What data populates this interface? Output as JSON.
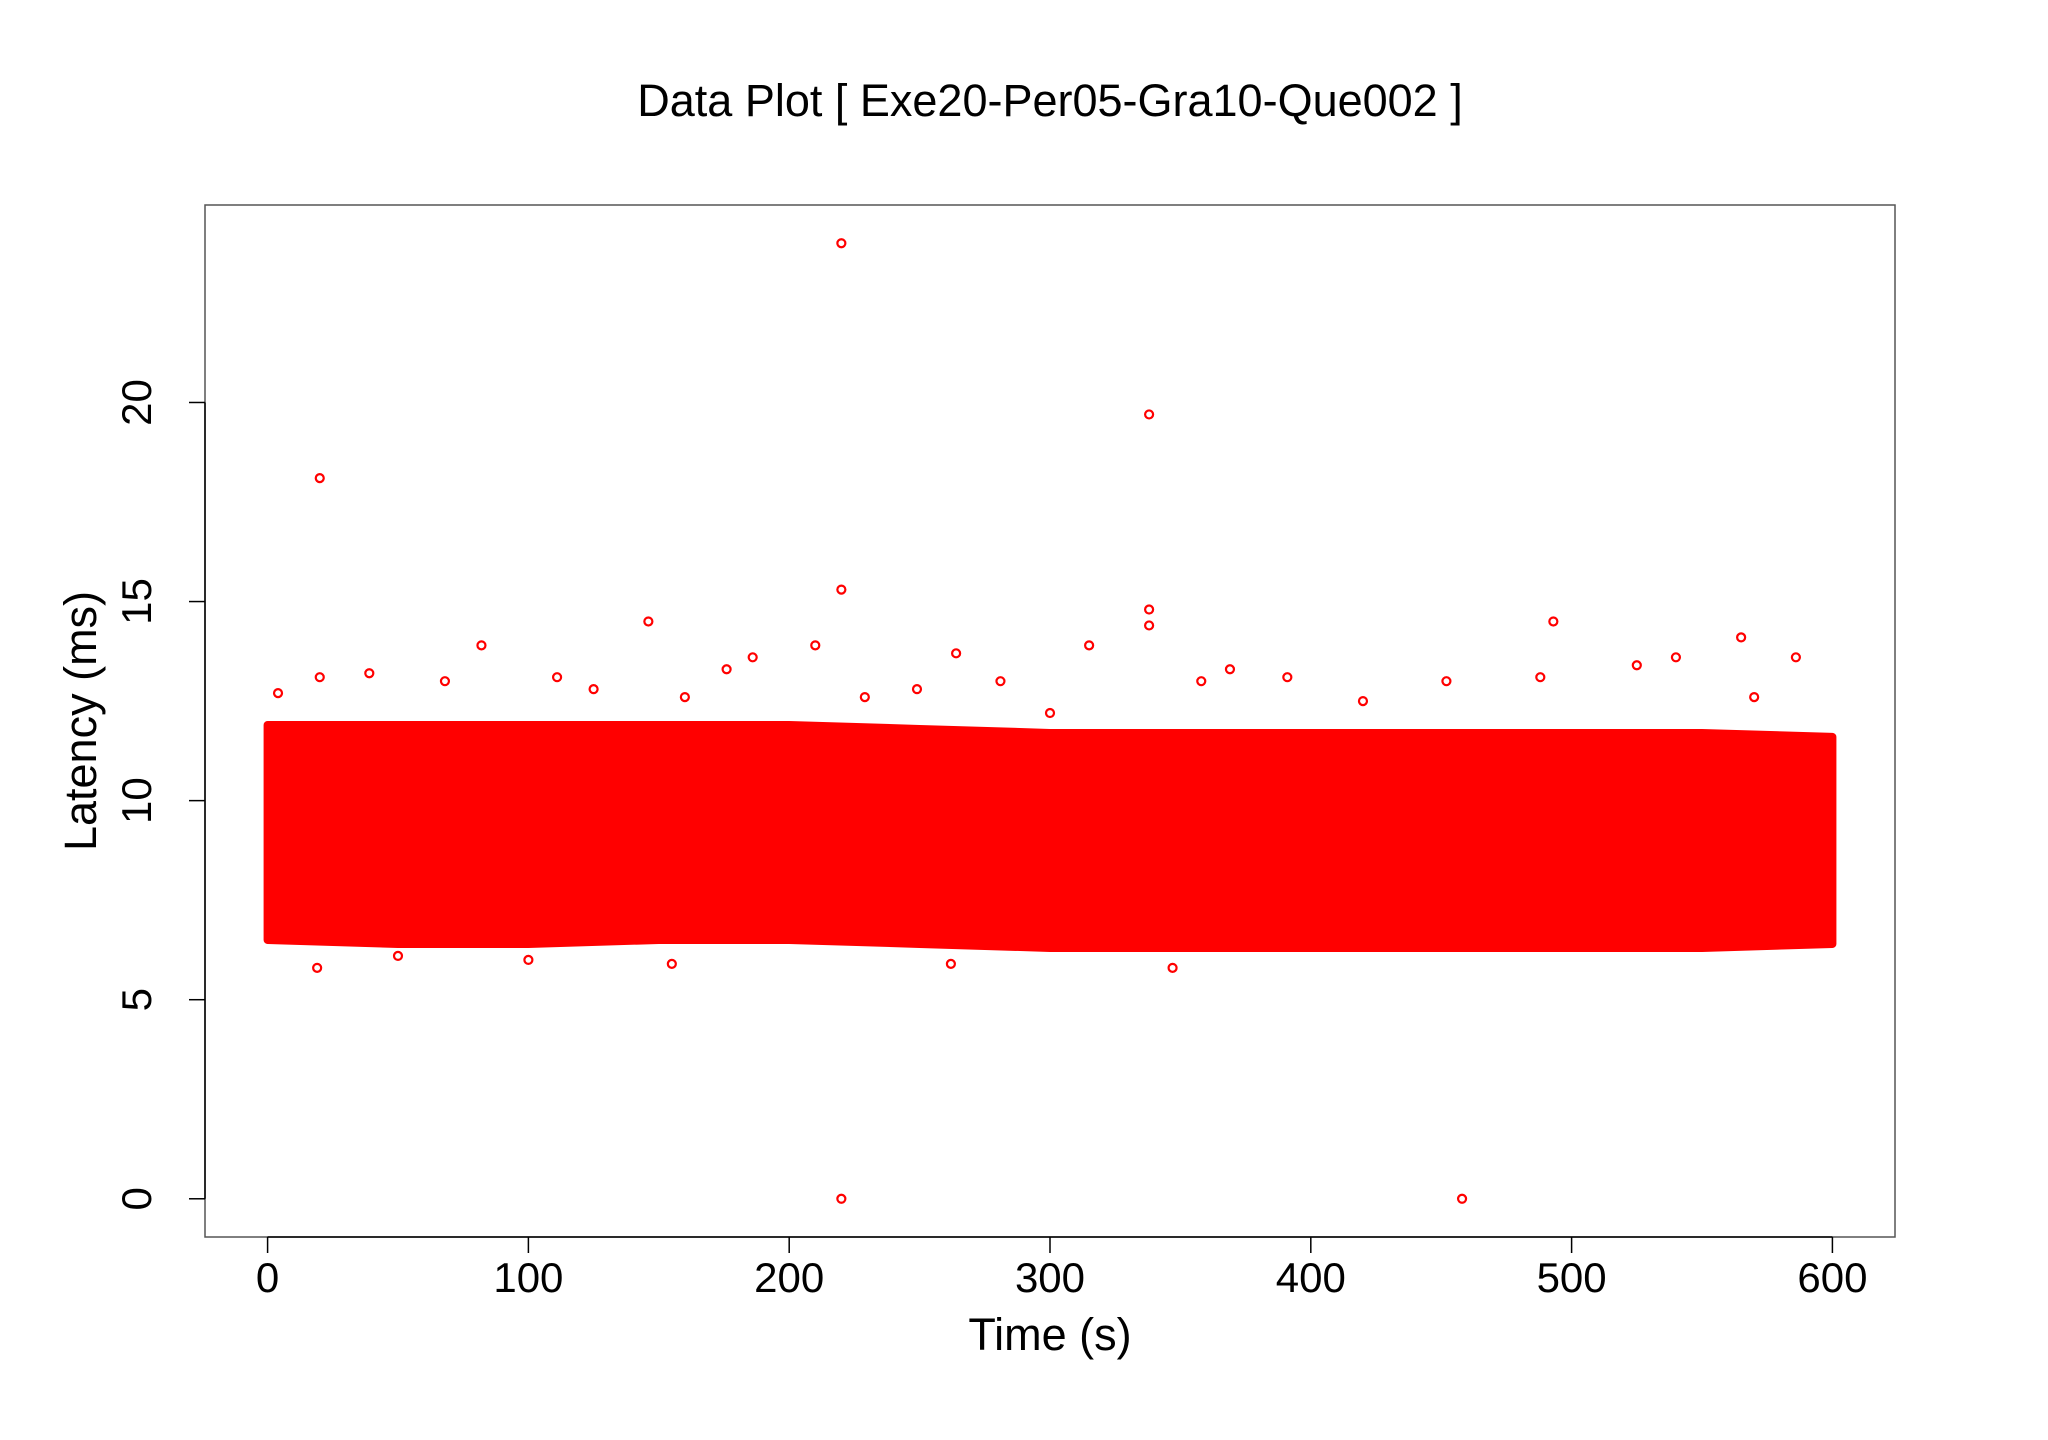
{
  "chart_data": {
    "type": "scatter",
    "title": "Data Plot [ Exe20-Per05-Gra10-Que002 ]",
    "xlabel": "Time (s)",
    "ylabel": "Latency (ms)",
    "xlim": [
      -24,
      624
    ],
    "ylim": [
      -0.96,
      24.96
    ],
    "xticks": [
      0,
      100,
      200,
      300,
      400,
      500,
      600
    ],
    "yticks": [
      0,
      5,
      10,
      15,
      20
    ],
    "color": "#ff0000",
    "points": {
      "x": [
        220,
        20,
        338,
        220,
        338,
        338,
        146,
        493,
        565,
        82,
        210,
        315,
        540,
        586,
        186,
        264,
        220,
        458,
        20,
        39,
        111,
        281,
        369,
        391,
        452,
        488,
        525,
        68,
        176,
        229,
        249,
        358,
        347,
        19,
        262,
        155,
        4,
        125,
        160,
        300,
        420,
        570,
        100,
        50
      ],
      "y": [
        24,
        18.1,
        19.7,
        15.3,
        14.8,
        14.4,
        14.5,
        14.5,
        14.1,
        13.9,
        13.9,
        13.9,
        13.6,
        13.6,
        13.6,
        13.7,
        0,
        0,
        13.1,
        13.2,
        13.1,
        13.0,
        13.3,
        13.1,
        13.0,
        13.1,
        13.4,
        13.0,
        13.3,
        12.6,
        12.8,
        13.0,
        5.8,
        5.8,
        5.9,
        5.9,
        12.7,
        12.8,
        12.6,
        12.2,
        12.5,
        12.6,
        6.0,
        6.1
      ]
    },
    "band": {
      "x": [
        0,
        50,
        100,
        150,
        200,
        250,
        300,
        350,
        400,
        450,
        500,
        550,
        600
      ],
      "upper": [
        11.9,
        11.9,
        11.9,
        11.9,
        11.9,
        11.8,
        11.7,
        11.7,
        11.7,
        11.7,
        11.7,
        11.7,
        11.6
      ],
      "lower": [
        6.5,
        6.4,
        6.4,
        6.5,
        6.5,
        6.4,
        6.3,
        6.3,
        6.3,
        6.3,
        6.3,
        6.3,
        6.4
      ]
    }
  }
}
